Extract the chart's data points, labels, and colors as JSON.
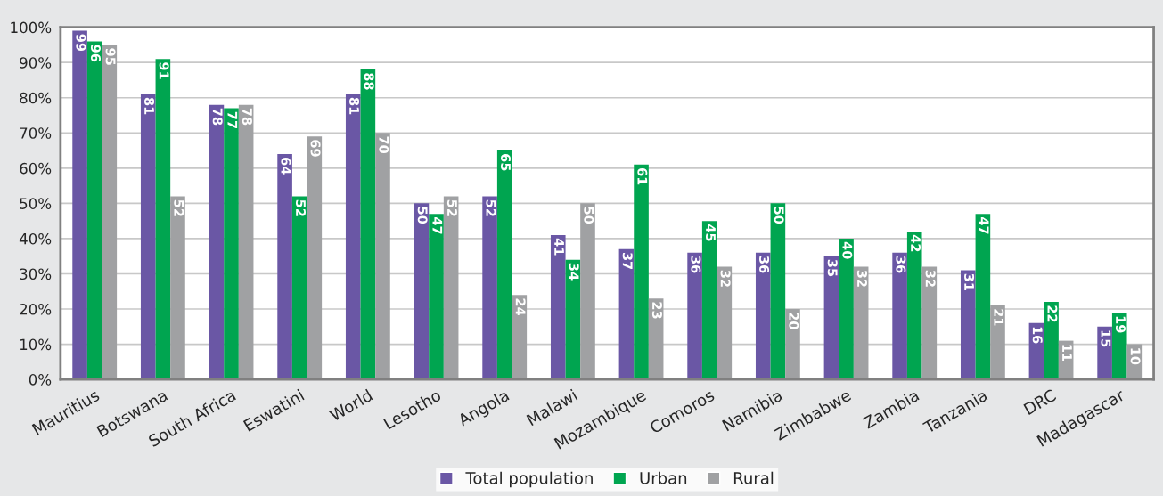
{
  "chart_data": {
    "type": "bar",
    "categories": [
      "Mauritius",
      "Botswana",
      "South Africa",
      "Eswatini",
      "World",
      "Lesotho",
      "Angola",
      "Malawi",
      "Mozambique",
      "Comoros",
      "Namibia",
      "Zimbabwe",
      "Zambia",
      "Tanzania",
      "DRC",
      "Madagascar"
    ],
    "series": [
      {
        "name": "Total population",
        "color": "#6a57a5",
        "values": [
          99,
          81,
          78,
          64,
          81,
          50,
          52,
          41,
          37,
          36,
          36,
          35,
          36,
          31,
          16,
          15
        ]
      },
      {
        "name": "Urban",
        "color": "#00a550",
        "values": [
          96,
          91,
          77,
          52,
          88,
          47,
          65,
          34,
          61,
          45,
          50,
          40,
          42,
          47,
          22,
          19
        ]
      },
      {
        "name": "Rural",
        "color": "#a0a1a3",
        "values": [
          95,
          52,
          78,
          69,
          70,
          52,
          24,
          50,
          23,
          32,
          20,
          32,
          32,
          21,
          11,
          10
        ]
      }
    ],
    "ylim": [
      0,
      100
    ],
    "yticks": [
      {
        "value": 0,
        "label": "0%"
      },
      {
        "value": 10,
        "label": "10%"
      },
      {
        "value": 20,
        "label": "20%"
      },
      {
        "value": 30,
        "label": "30%"
      },
      {
        "value": 40,
        "label": "40%"
      },
      {
        "value": 50,
        "label": "50%"
      },
      {
        "value": 60,
        "label": "60%"
      },
      {
        "value": 70,
        "label": "70%"
      },
      {
        "value": 80,
        "label": "80%"
      },
      {
        "value": 90,
        "label": "90%"
      },
      {
        "value": 100,
        "label": "100%"
      }
    ],
    "grid": "y",
    "legend": "bottom",
    "data_labels": true
  }
}
